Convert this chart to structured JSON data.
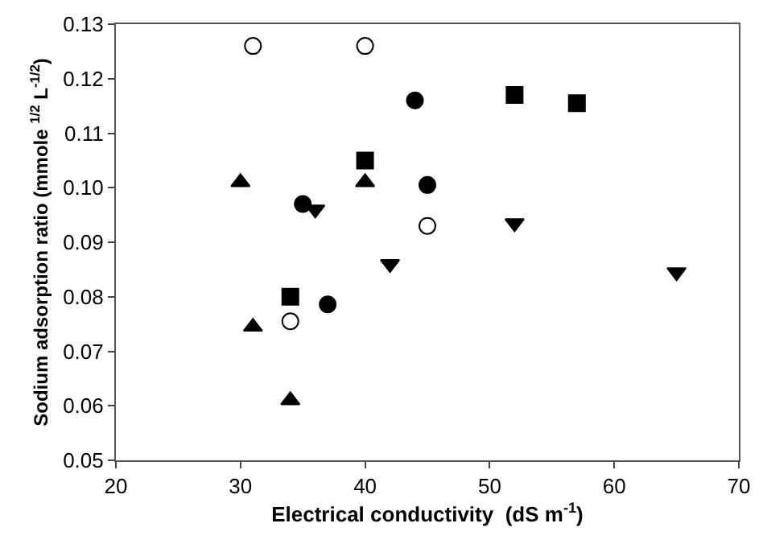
{
  "chart_data": {
    "type": "scatter",
    "xlabel": "Electrical conductivity  (dS m$^{-1}$)",
    "ylabel": "Sodium adsorption ratio (mmole $^{1/2}$ L$^{-1/2}$)",
    "xlim": [
      20,
      70
    ],
    "xticks": [
      20,
      30,
      40,
      50,
      60,
      70
    ],
    "ylim": [
      0.05,
      0.13
    ],
    "yticks": [
      {
        "value": 0.05,
        "label": "0.05"
      },
      {
        "value": 0.06,
        "label": "0.06"
      },
      {
        "value": 0.07,
        "label": "0.07"
      },
      {
        "value": 0.08,
        "label": "0.08"
      },
      {
        "value": 0.09,
        "label": "0.09"
      },
      {
        "value": 0.1,
        "label": "0.10"
      },
      {
        "value": 0.11,
        "label": "0.11"
      },
      {
        "value": 0.12,
        "label": "0.12"
      },
      {
        "value": 0.13,
        "label": "0.13"
      }
    ],
    "series": [
      {
        "color": "#ffffff",
        "marker": "circle",
        "x": [
          31,
          40,
          45,
          34
        ],
        "values": [
          0.126,
          0.126,
          0.093,
          0.0755
        ]
      },
      {
        "color": "#000000",
        "marker": "circle",
        "x": [
          44,
          45,
          35,
          37
        ],
        "values": [
          0.116,
          0.1005,
          0.097,
          0.0786
        ]
      },
      {
        "color": "#000000",
        "marker": "square",
        "x": [
          52,
          57,
          40,
          34
        ],
        "values": [
          0.117,
          0.1155,
          0.105,
          0.08
        ]
      },
      {
        "color": "#000000",
        "marker": "triangle",
        "x": [
          30,
          40,
          31,
          34
        ],
        "values": [
          0.101,
          0.101,
          0.0745,
          0.061
        ]
      },
      {
        "color": "#000000",
        "marker": "triangle-down",
        "x": [
          36,
          42,
          52,
          65
        ],
        "values": [
          0.096,
          0.086,
          0.0935,
          0.0845
        ]
      }
    ]
  }
}
